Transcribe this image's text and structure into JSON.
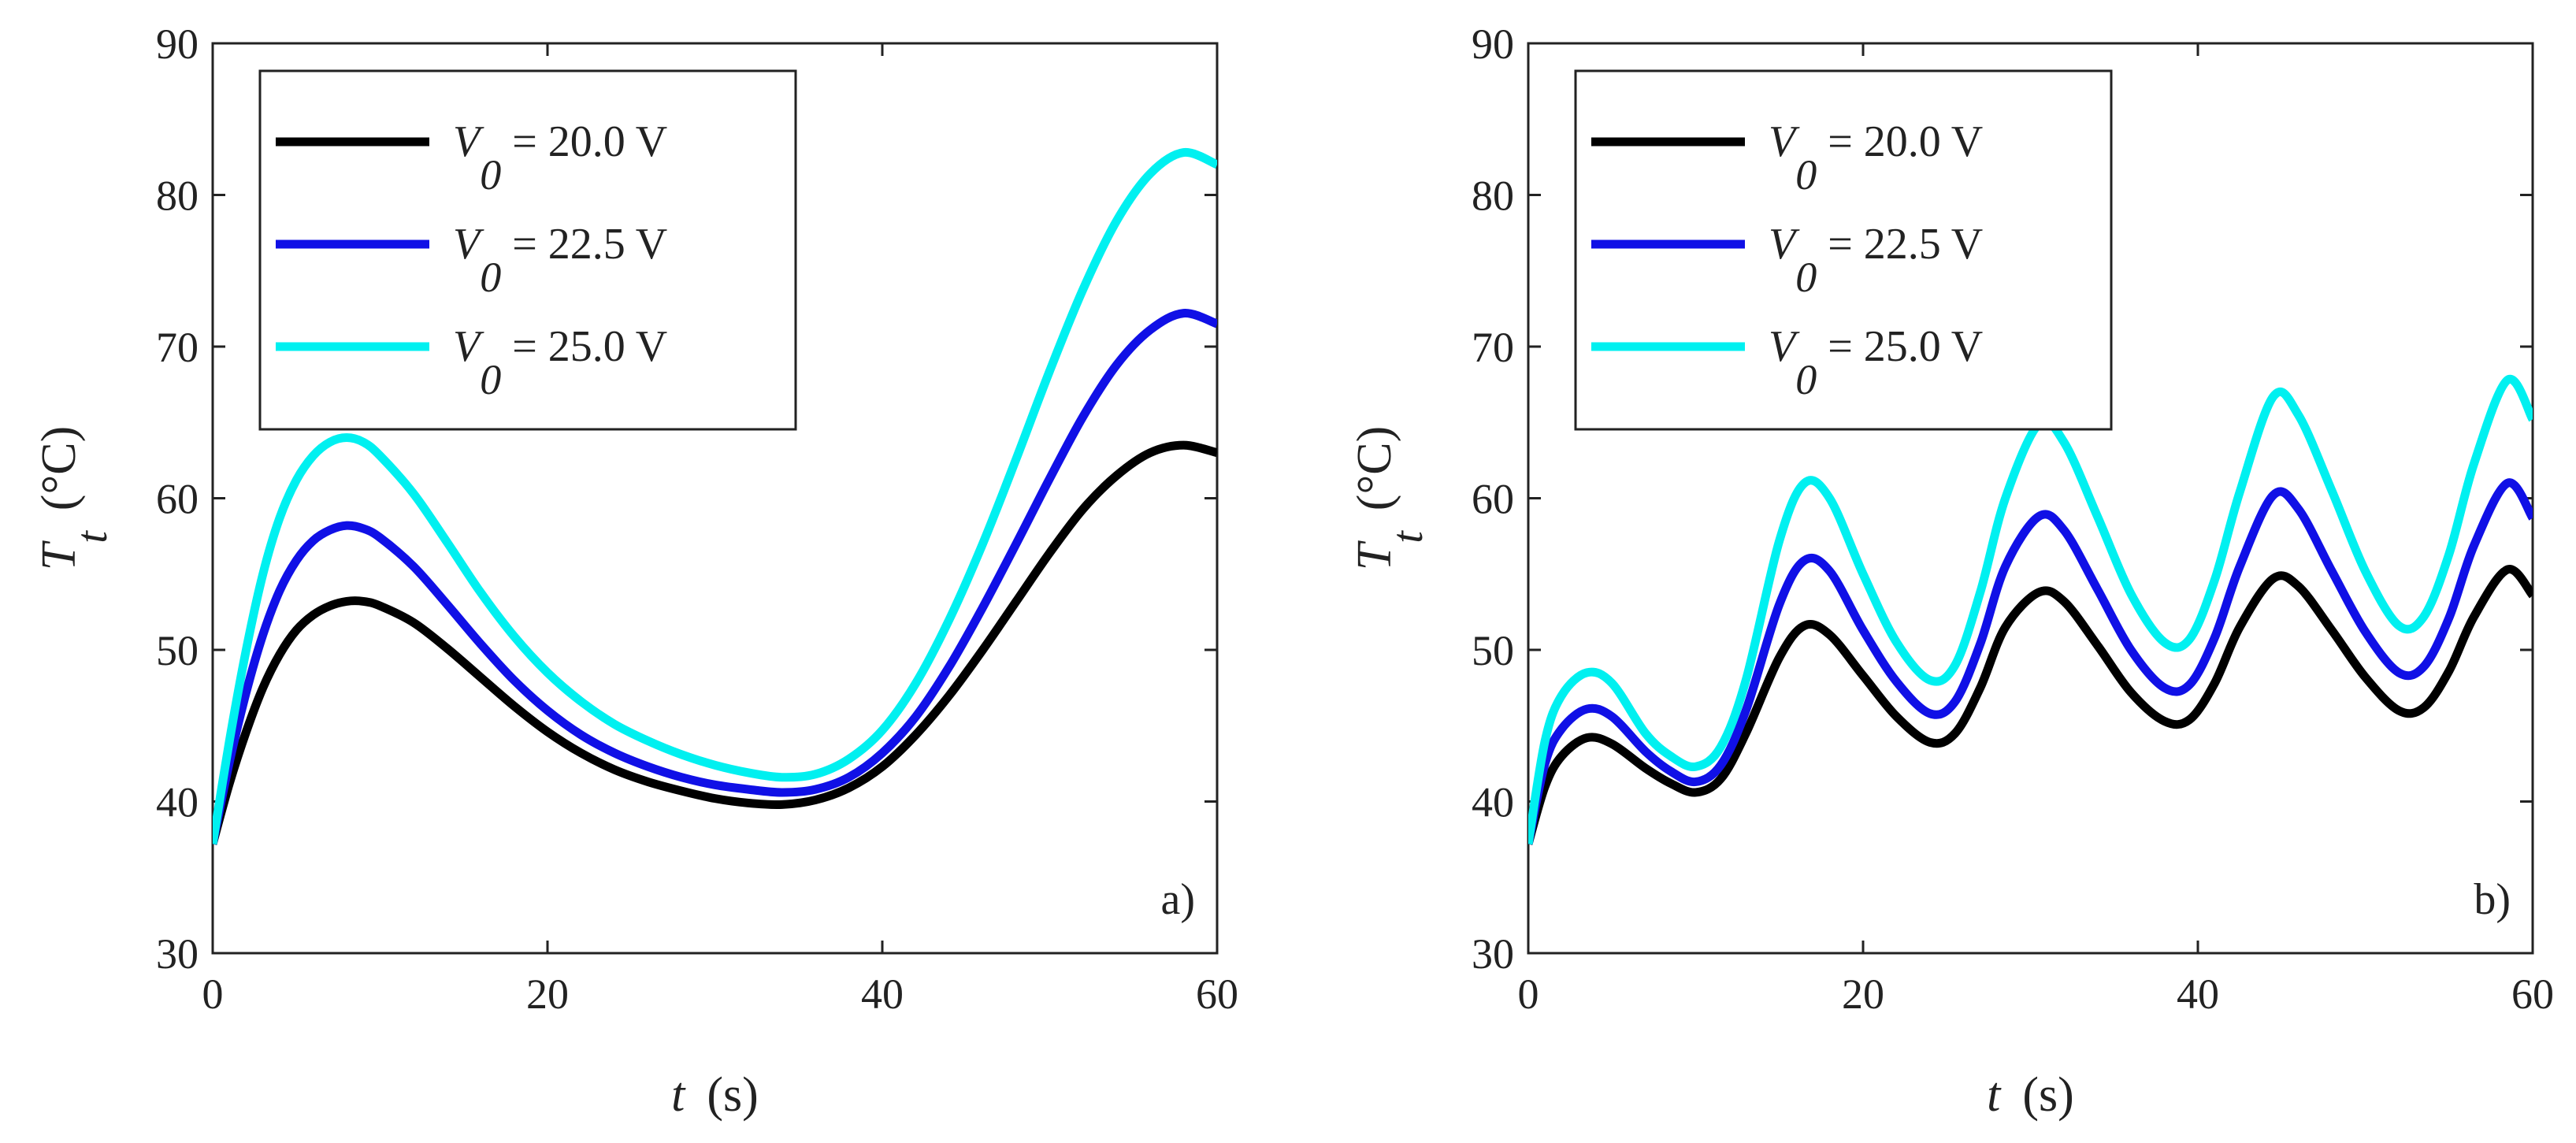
{
  "chart_data": [
    {
      "type": "line",
      "panel_label": "a)",
      "xlabel": {
        "symbol": "t",
        "unit": "(s)"
      },
      "ylabel": {
        "symbol": "T",
        "subscript": "t",
        "unit": "(°C)"
      },
      "xlim": [
        0,
        60
      ],
      "ylim": [
        30,
        90
      ],
      "xticks": [
        0,
        20,
        40,
        60
      ],
      "yticks": [
        30,
        40,
        50,
        60,
        70,
        80,
        90
      ],
      "xtick_labels": [
        "0",
        "20",
        "40",
        "60"
      ],
      "ytick_labels": [
        "30",
        "40",
        "50",
        "60",
        "70",
        "80",
        "90"
      ],
      "legend_position": "top-left",
      "series": [
        {
          "name": "V0 = 20.0 V",
          "legend_symbol": "V",
          "legend_subscript": "0",
          "legend_value": "= 20.0 V",
          "color": "#000000",
          "x": [
            0,
            1,
            2,
            3,
            4,
            5,
            6,
            7,
            8,
            9,
            10,
            12,
            14,
            16,
            18,
            20,
            22,
            24,
            26,
            28,
            30,
            32,
            34,
            36,
            38,
            40,
            42,
            44,
            46,
            48,
            50,
            52,
            54,
            56,
            58,
            60
          ],
          "y": [
            37.2,
            41.2,
            44.6,
            47.5,
            49.7,
            51.3,
            52.3,
            52.9,
            53.2,
            53.2,
            52.9,
            51.8,
            50.1,
            48.2,
            46.3,
            44.6,
            43.2,
            42.1,
            41.3,
            40.7,
            40.2,
            39.9,
            39.8,
            40.1,
            40.9,
            42.3,
            44.4,
            47.0,
            50.0,
            53.2,
            56.4,
            59.3,
            61.5,
            63.0,
            63.5,
            63.0
          ]
        },
        {
          "name": "V0 = 22.5 V",
          "legend_symbol": "V",
          "legend_subscript": "0",
          "legend_value": "= 22.5 V",
          "color": "#1010e6",
          "x": [
            0,
            1,
            2,
            3,
            4,
            5,
            6,
            7,
            8,
            9,
            10,
            12,
            14,
            16,
            18,
            20,
            22,
            24,
            26,
            28,
            30,
            32,
            34,
            36,
            38,
            40,
            42,
            44,
            46,
            48,
            50,
            52,
            54,
            56,
            58,
            60
          ],
          "y": [
            37.2,
            42.6,
            47.2,
            51.0,
            53.9,
            55.9,
            57.2,
            57.9,
            58.2,
            58.0,
            57.4,
            55.5,
            53.0,
            50.4,
            48.0,
            46.0,
            44.4,
            43.2,
            42.3,
            41.6,
            41.1,
            40.8,
            40.6,
            40.8,
            41.6,
            43.2,
            45.6,
            48.9,
            52.8,
            57.0,
            61.3,
            65.4,
            68.8,
            71.1,
            72.2,
            71.5
          ]
        },
        {
          "name": "V0 = 25.0 V",
          "legend_symbol": "V",
          "legend_subscript": "0",
          "legend_value": "= 25.0 V",
          "color": "#00f0f0",
          "x": [
            0,
            1,
            2,
            3,
            4,
            5,
            6,
            7,
            8,
            9,
            10,
            12,
            14,
            16,
            18,
            20,
            22,
            24,
            26,
            28,
            30,
            32,
            34,
            36,
            38,
            40,
            42,
            44,
            46,
            48,
            50,
            52,
            54,
            56,
            58,
            60
          ],
          "y": [
            37.2,
            44.0,
            50.0,
            55.0,
            58.7,
            61.2,
            62.8,
            63.7,
            64.0,
            63.7,
            62.8,
            60.3,
            57.1,
            53.8,
            50.9,
            48.5,
            46.6,
            45.1,
            44.0,
            43.1,
            42.4,
            41.9,
            41.6,
            41.8,
            42.8,
            44.7,
            47.8,
            52.0,
            57.0,
            62.6,
            68.4,
            73.8,
            78.3,
            81.4,
            82.8,
            82.0
          ]
        }
      ]
    },
    {
      "type": "line",
      "panel_label": "b)",
      "xlabel": {
        "symbol": "t",
        "unit": "(s)"
      },
      "ylabel": {
        "symbol": "T",
        "subscript": "t",
        "unit": "(°C)"
      },
      "xlim": [
        0,
        60
      ],
      "ylim": [
        30,
        90
      ],
      "xticks": [
        0,
        20,
        40,
        60
      ],
      "yticks": [
        30,
        40,
        50,
        60,
        70,
        80,
        90
      ],
      "xtick_labels": [
        "0",
        "20",
        "40",
        "60"
      ],
      "ytick_labels": [
        "30",
        "40",
        "50",
        "60",
        "70",
        "80",
        "90"
      ],
      "legend_position": "top-left",
      "series": [
        {
          "name": "V0 = 20.0 V",
          "legend_symbol": "V",
          "legend_subscript": "0",
          "legend_value": "= 20.0 V",
          "color": "#000000",
          "x": [
            0,
            1,
            2,
            3.5,
            5,
            7,
            8.5,
            10,
            11.5,
            13,
            15,
            16.5,
            18,
            20,
            22,
            24,
            25.5,
            27,
            28.5,
            30.5,
            32,
            34,
            36,
            38,
            39.5,
            41,
            42.5,
            44.5,
            46,
            48,
            50,
            52,
            53.5,
            55,
            56.5,
            58.5,
            60
          ],
          "y": [
            37.2,
            41.0,
            43.0,
            44.2,
            43.8,
            42.2,
            41.2,
            40.6,
            41.5,
            44.5,
            49.5,
            51.6,
            51.0,
            48.3,
            45.6,
            43.9,
            44.5,
            47.5,
            51.5,
            53.8,
            53.2,
            50.3,
            47.2,
            45.3,
            45.4,
            47.8,
            51.5,
            54.7,
            54.2,
            51.3,
            48.2,
            46.0,
            46.2,
            48.6,
            52.2,
            55.3,
            53.6
          ]
        },
        {
          "name": "V0 = 22.5 V",
          "legend_symbol": "V",
          "legend_subscript": "0",
          "legend_value": "= 22.5 V",
          "color": "#1010e6",
          "x": [
            0,
            1,
            2,
            3.5,
            5,
            7,
            8.5,
            10,
            11.5,
            13,
            15,
            16.5,
            18,
            20,
            22,
            24,
            25.5,
            27,
            28.5,
            30.5,
            32,
            34,
            36,
            38,
            39.5,
            41,
            42.5,
            44.5,
            46,
            48,
            50,
            52,
            53.5,
            55,
            56.5,
            58.5,
            60
          ],
          "y": [
            37.2,
            42.5,
            44.8,
            46.1,
            45.6,
            43.3,
            42.0,
            41.3,
            42.4,
            46.0,
            53.0,
            55.9,
            55.2,
            51.3,
            47.9,
            45.8,
            46.6,
            50.4,
            55.5,
            58.8,
            57.9,
            54.0,
            50.0,
            47.5,
            47.7,
            50.8,
            55.5,
            60.2,
            59.3,
            55.2,
            51.2,
            48.5,
            48.9,
            52.1,
            56.9,
            61.0,
            58.7
          ]
        },
        {
          "name": "V0 = 25.0 V",
          "legend_symbol": "V",
          "legend_subscript": "0",
          "legend_value": "= 25.0 V",
          "color": "#00f0f0",
          "x": [
            0,
            1,
            2,
            3.5,
            5,
            7,
            8.5,
            10,
            11.5,
            13,
            15,
            16.5,
            18,
            20,
            22,
            24,
            25.5,
            27,
            28.5,
            30.5,
            32,
            34,
            36,
            38,
            39.5,
            41,
            42.5,
            44.5,
            46,
            48,
            50,
            52,
            53.5,
            55,
            56.5,
            58.5,
            60
          ],
          "y": [
            37.2,
            44.0,
            47.0,
            48.5,
            47.8,
            44.5,
            43.0,
            42.3,
            43.6,
            48.0,
            57.2,
            61.0,
            60.0,
            55.0,
            50.5,
            48.0,
            49.0,
            53.8,
            60.0,
            64.9,
            63.7,
            58.8,
            53.7,
            50.5,
            50.7,
            54.6,
            60.4,
            66.7,
            65.5,
            60.5,
            55.2,
            51.6,
            52.2,
            56.3,
            62.3,
            67.8,
            65.2
          ]
        }
      ]
    }
  ]
}
